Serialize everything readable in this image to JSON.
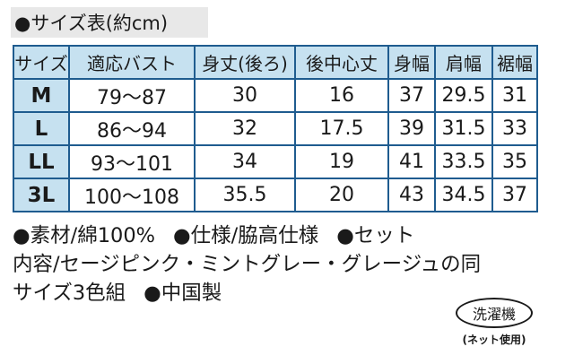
{
  "title": "●サイズ表(約cm)",
  "table": {
    "headers": [
      "サイズ",
      "適応バスト",
      "身丈(後ろ)",
      "後中心丈",
      "身幅",
      "肩幅",
      "裾幅"
    ],
    "rows": [
      {
        "size": "M",
        "cells": [
          "79～87",
          "30",
          "16",
          "37",
          "29.5",
          "31"
        ]
      },
      {
        "size": "L",
        "cells": [
          "86～94",
          "32",
          "17.5",
          "39",
          "31.5",
          "33"
        ]
      },
      {
        "size": "LL",
        "cells": [
          "93～101",
          "34",
          "19",
          "41",
          "33.5",
          "35"
        ]
      },
      {
        "size": "3L",
        "cells": [
          "100～108",
          "35.5",
          "20",
          "43",
          "34.5",
          "37"
        ]
      }
    ]
  },
  "notes": {
    "material": "●素材/綿100%",
    "spec": "●仕様/脇高仕様",
    "set_1": "●セット",
    "set_2": "内容/セージピンク・ミントグレー・グレージュの同",
    "set_3": "サイズ3色組",
    "origin": "●中国製"
  },
  "care": {
    "label": "洗濯機",
    "sub": "(ネット使用)"
  }
}
